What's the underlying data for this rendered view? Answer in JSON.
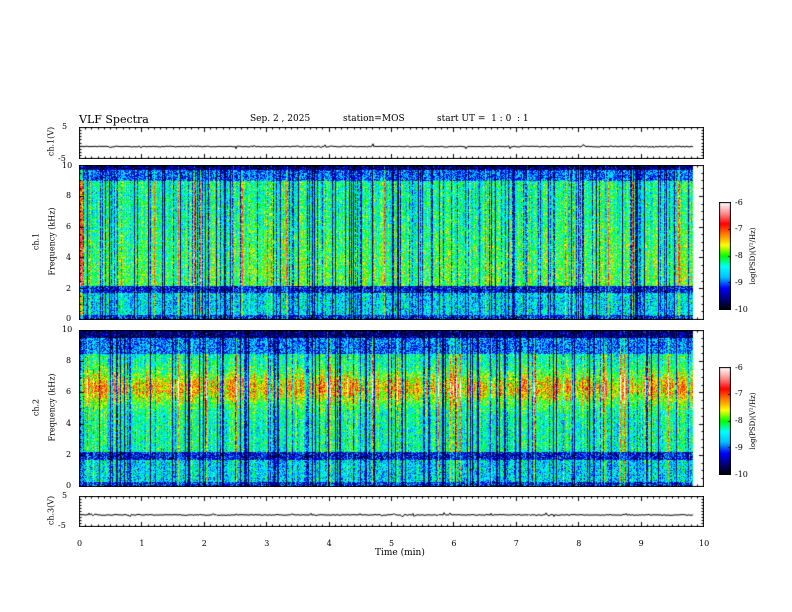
{
  "header": {
    "title": "VLF Spectra",
    "date": "Sep. 2 , 2025",
    "station": "station=MOS",
    "start_ut": "start UT =  1 : 0  : 1"
  },
  "chart_data": [
    {
      "type": "line",
      "name": "ch1-waveform",
      "ylabel": "ch.1(V)",
      "ylim": [
        -5,
        5
      ],
      "yticks": [
        "5",
        "-5"
      ],
      "xlim": [
        0,
        10
      ],
      "baseline": -1.3
    },
    {
      "type": "heatmap",
      "name": "ch1-spectrogram",
      "ylabel_1": "ch.1",
      "ylabel_2": "Frequency (kHz)",
      "ylim": [
        0,
        10
      ],
      "yticks": [
        "0",
        "2",
        "4",
        "6",
        "8",
        "10"
      ],
      "xlim": [
        0,
        10
      ],
      "data_end_min": 9.83
    },
    {
      "type": "heatmap",
      "name": "ch2-spectrogram",
      "ylabel_1": "ch.2",
      "ylabel_2": "Frequency (kHz)",
      "ylim": [
        0,
        10
      ],
      "yticks": [
        "0",
        "2",
        "4",
        "6",
        "8",
        "10"
      ],
      "xlim": [
        0,
        10
      ],
      "data_end_min": 9.83
    },
    {
      "type": "line",
      "name": "ch3-waveform",
      "ylabel": "ch.3(V)",
      "ylim": [
        -5,
        5
      ],
      "yticks": [
        "5",
        "-5"
      ],
      "xlim": [
        0,
        10
      ],
      "baseline": -1.3
    }
  ],
  "xaxis": {
    "label": "Time (min)",
    "ticks": [
      "0",
      "1",
      "2",
      "3",
      "4",
      "5",
      "6",
      "7",
      "8",
      "9",
      "10"
    ]
  },
  "colorbar": {
    "label": "log(PSD)(V²/Hz)",
    "ticks": [
      "-6",
      "-7",
      "-8",
      "-9",
      "-10"
    ],
    "range": [
      -10,
      -6
    ]
  },
  "colors": {
    "axis": "#000000",
    "colormap": [
      "#000000",
      "#00007f",
      "#0000ff",
      "#00bfff",
      "#00ffff",
      "#00ff00",
      "#ffff00",
      "#ff8000",
      "#ff0000",
      "#ff9090",
      "#ffffff"
    ]
  }
}
